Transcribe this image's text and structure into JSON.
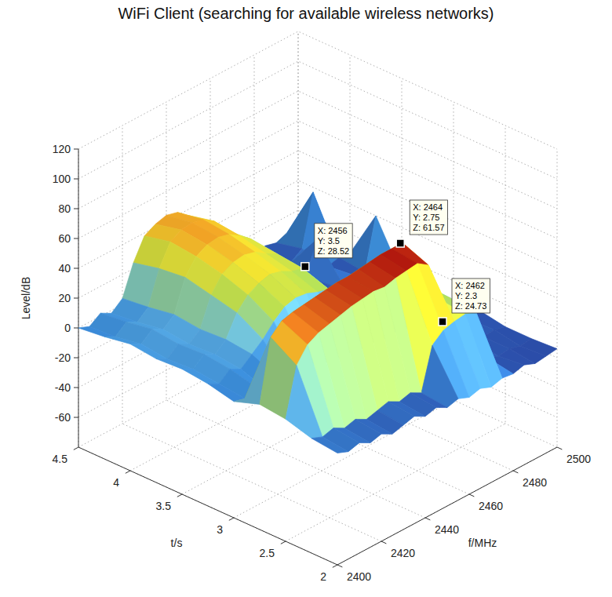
{
  "chart_data": {
    "type": "surface",
    "title": "WiFi Client (searching for available wireless networks)",
    "xlabel": "f/MHz",
    "ylabel": "t/s",
    "zlabel": "Level/dB",
    "x": [
      2400,
      2405,
      2410,
      2415,
      2420,
      2425,
      2430,
      2435,
      2440,
      2445,
      2450,
      2455,
      2460,
      2465,
      2470,
      2475,
      2480,
      2485,
      2490,
      2495,
      2500
    ],
    "y": [
      2,
      2.25,
      2.5,
      2.75,
      3,
      3.25,
      3.5,
      3.75,
      4,
      4.25,
      4.5
    ],
    "z": [
      [
        -5,
        -8,
        -6,
        -10,
        -8,
        -12,
        -10,
        -8,
        -12,
        -10,
        -14,
        -12,
        -15,
        -13,
        -16,
        -14,
        -15,
        -13,
        -16,
        -15,
        -14
      ],
      [
        -3,
        -6,
        -4,
        -8,
        -6,
        -10,
        -8,
        -6,
        -10,
        -8,
        -12,
        16,
        22,
        24,
        25,
        22,
        -12,
        -15,
        -14,
        -16,
        -15
      ],
      [
        2,
        34,
        44,
        48,
        50,
        52,
        54,
        55,
        56,
        55,
        57,
        58,
        59,
        54,
        27,
        24,
        -10,
        -12,
        -14,
        -13,
        -15
      ],
      [
        4,
        45,
        52,
        54,
        55,
        56,
        57,
        58,
        58,
        59,
        60,
        61,
        61,
        61,
        28,
        25,
        -8,
        -12,
        -10,
        -14,
        -12
      ],
      [
        -2,
        -4,
        0,
        -6,
        -2,
        -8,
        -6,
        -4,
        -10,
        -8,
        -12,
        -10,
        -14,
        -12,
        -15,
        -13,
        -16,
        -12,
        -15,
        -14,
        -13
      ],
      [
        2,
        -2,
        4,
        0,
        6,
        12,
        20,
        26,
        28,
        27,
        24,
        22,
        -12,
        -14,
        -13,
        -15,
        -12,
        -14,
        -16,
        -10,
        -14
      ],
      [
        4,
        0,
        6,
        2,
        8,
        22,
        30,
        34,
        36,
        34,
        30,
        28,
        10,
        -12,
        -14,
        -13,
        -15,
        -12,
        -14,
        5,
        -12
      ],
      [
        3,
        -1,
        5,
        1,
        7,
        26,
        36,
        40,
        41,
        39,
        34,
        30,
        8,
        -10,
        -13,
        -15,
        -11,
        -14,
        -12,
        -14,
        20
      ],
      [
        5,
        1,
        7,
        3,
        9,
        30,
        40,
        44,
        45,
        43,
        38,
        32,
        9,
        -12,
        -14,
        -10,
        -13,
        8,
        -14,
        -12,
        -13
      ],
      [
        2,
        -2,
        4,
        0,
        6,
        28,
        42,
        46,
        47,
        45,
        40,
        30,
        7,
        -11,
        -12,
        -14,
        -12,
        -15,
        -10,
        24,
        -14
      ],
      [
        0,
        -3,
        2,
        -2,
        4,
        24,
        38,
        42,
        44,
        42,
        36,
        28,
        6,
        -14,
        -10,
        -13,
        -15,
        -12,
        -14,
        -11,
        -13
      ]
    ],
    "xlim": [
      2400,
      2500
    ],
    "xticks": [
      2400,
      2420,
      2440,
      2460,
      2480,
      2500
    ],
    "ylim": [
      2,
      4.5
    ],
    "yticks": [
      2,
      2.5,
      3,
      3.5,
      4,
      4.5
    ],
    "zlim": [
      -80,
      120
    ],
    "zticks": [
      -60,
      -40,
      -20,
      0,
      20,
      40,
      60,
      80,
      100,
      120
    ],
    "grid": true,
    "annotations": [
      {
        "x": 2456,
        "y": 3.5,
        "z": 28.52,
        "text": [
          "X: 2456",
          "Y: 3.5",
          "Z: 28.52"
        ]
      },
      {
        "x": 2464,
        "y": 2.75,
        "z": 61.57,
        "text": [
          "X: 2464",
          "Y: 2.75",
          "Z: 61.57"
        ]
      },
      {
        "x": 2462,
        "y": 2.3,
        "z": 24.73,
        "text": [
          "X: 2462",
          "Y: 2.3",
          "Z: 24.73"
        ]
      }
    ]
  }
}
